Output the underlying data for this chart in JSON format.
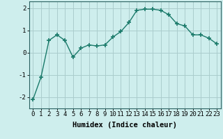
{
  "x": [
    0,
    1,
    2,
    3,
    4,
    5,
    6,
    7,
    8,
    9,
    10,
    11,
    12,
    13,
    14,
    15,
    16,
    17,
    18,
    19,
    20,
    21,
    22,
    23
  ],
  "y": [
    -2.1,
    -1.1,
    0.55,
    0.8,
    0.55,
    -0.2,
    0.2,
    0.35,
    0.3,
    0.35,
    0.7,
    0.95,
    1.35,
    1.9,
    1.95,
    1.95,
    1.9,
    1.7,
    1.3,
    1.2,
    0.8,
    0.8,
    0.65,
    0.4
  ],
  "line_color": "#1a7a6a",
  "marker": "+",
  "marker_size": 4,
  "bg_color": "#ceeeed",
  "grid_color": "#aacccc",
  "xlabel": "Humidex (Indice chaleur)",
  "xlim": [
    -0.5,
    23.5
  ],
  "ylim": [
    -2.5,
    2.3
  ],
  "yticks": [
    -2,
    -1,
    0,
    1,
    2
  ],
  "xticks": [
    0,
    1,
    2,
    3,
    4,
    5,
    6,
    7,
    8,
    9,
    10,
    11,
    12,
    13,
    14,
    15,
    16,
    17,
    18,
    19,
    20,
    21,
    22,
    23
  ],
  "xtick_labels": [
    "0",
    "1",
    "2",
    "3",
    "4",
    "5",
    "6",
    "7",
    "8",
    "9",
    "10",
    "11",
    "12",
    "13",
    "14",
    "15",
    "16",
    "17",
    "18",
    "19",
    "20",
    "21",
    "22",
    "23"
  ],
  "tick_fontsize": 6.5,
  "xlabel_fontsize": 7.5,
  "line_width": 1.0
}
